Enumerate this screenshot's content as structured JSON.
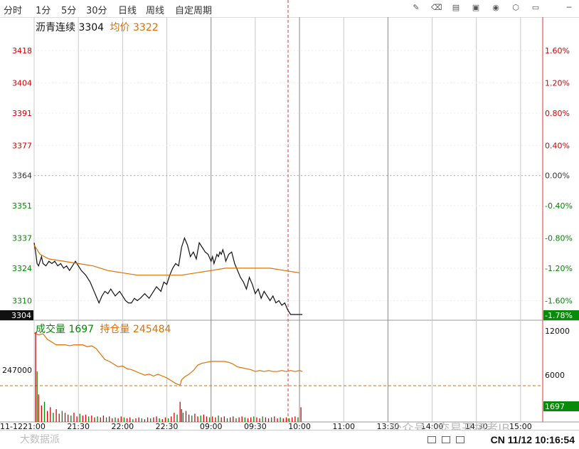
{
  "toolbar": {
    "tabs": [
      "分时",
      "1分",
      "5分",
      "30分",
      "日线",
      "周线",
      "自定周期"
    ],
    "icons": [
      "pencil-icon",
      "eraser-icon",
      "layers-icon",
      "screenshot-icon",
      "camera-icon",
      "settings-icon",
      "note-icon",
      "minimize-icon"
    ]
  },
  "colors": {
    "up": "#d60000",
    "down": "#008800",
    "avg": "#e07000",
    "grid": "#c8c8c8",
    "sep": "#d33",
    "price": "#111"
  },
  "price_legend": {
    "name": "沥青连续",
    "last": "3304",
    "avg_label": "均价",
    "avg": "3322",
    "last_tag": "3304",
    "last_pct": "-1.78%"
  },
  "vol_legend": {
    "vol_label": "成交量",
    "vol": "1697",
    "oi_label": "持仓量",
    "oi": "245484",
    "vol_tag": "1697"
  },
  "chart_data": {
    "type": "line",
    "title": "沥青连续",
    "price_axis": {
      "ticks": [
        3418,
        3404,
        3391,
        3377,
        3364,
        3351,
        3337,
        3324,
        3310
      ],
      "pct_ticks": [
        "1.60%",
        "1.20%",
        "0.80%",
        "0.40%",
        "0.00%",
        "-0.40%",
        "-0.80%",
        "-1.20%",
        "-1.60%"
      ],
      "ylim": [
        3304,
        3438
      ]
    },
    "volume_axis": {
      "right_ticks": [
        "12000",
        "6000"
      ],
      "left_ticks": [
        "247000"
      ],
      "oi_reference": 247000
    },
    "x_axis": {
      "start_label": "11-12",
      "labels": [
        "21:00",
        "21:30",
        "22:00",
        "22:30",
        "09:00",
        "09:30",
        "10:00",
        "11:00",
        "13:30",
        "14:00",
        "14:30",
        "15:00"
      ],
      "total_minutes": 345
    },
    "series": [
      {
        "name": "沥青连续",
        "color": "#111",
        "x": [
          0,
          1,
          2,
          3,
          4,
          5,
          6,
          8,
          10,
          12,
          14,
          16,
          18,
          20,
          22,
          24,
          26,
          28,
          30,
          32,
          35,
          38,
          40,
          42,
          44,
          46,
          48,
          50,
          52,
          55,
          58,
          60,
          62,
          64,
          66,
          68,
          70,
          72,
          75,
          78,
          80,
          83,
          86,
          88,
          90,
          92,
          94,
          96,
          98,
          100,
          102,
          104,
          106,
          108,
          110,
          112,
          114,
          116,
          118,
          120,
          121,
          122,
          123,
          124,
          125,
          126,
          127,
          128,
          129,
          130,
          132,
          134,
          136,
          138,
          140,
          142,
          144,
          146,
          148,
          150,
          152,
          154,
          156,
          158,
          160,
          162,
          164,
          166,
          168,
          170,
          172,
          174,
          176,
          178,
          180,
          182
        ],
        "y": [
          3335,
          3331,
          3326,
          3325,
          3327,
          3329,
          3326,
          3325,
          3327,
          3326,
          3327,
          3325,
          3326,
          3324,
          3325,
          3323,
          3325,
          3327,
          3325,
          3323,
          3321,
          3318,
          3315,
          3312,
          3309,
          3312,
          3314,
          3313,
          3315,
          3312,
          3314,
          3312,
          3310,
          3309,
          3309,
          3311,
          3310,
          3311,
          3313,
          3311,
          3313,
          3316,
          3314,
          3318,
          3317,
          3321,
          3324,
          3326,
          3325,
          3333,
          3337,
          3334,
          3329,
          3331,
          3328,
          3335,
          3333,
          3331,
          3330,
          3327,
          3329,
          3326,
          3328,
          3330,
          3329,
          3331,
          3330,
          3332,
          3330,
          3327,
          3330,
          3331,
          3326,
          3323,
          3320,
          3318,
          3315,
          3320,
          3317,
          3313,
          3315,
          3311,
          3314,
          3312,
          3310,
          3312,
          3309,
          3310,
          3308,
          3309,
          3306,
          3304,
          3304,
          3304,
          3304,
          3304
        ]
      },
      {
        "name": "均价",
        "color": "#e07000",
        "x": [
          0,
          4,
          10,
          20,
          30,
          40,
          50,
          60,
          70,
          80,
          90,
          100,
          110,
          120,
          130,
          140,
          150,
          160,
          170,
          180
        ],
        "y": [
          3334,
          3330,
          3328,
          3327,
          3326,
          3325,
          3323,
          3322,
          3321,
          3321,
          3321,
          3321,
          3322,
          3323,
          3324,
          3324,
          3324,
          3324,
          3323,
          3322
        ]
      },
      {
        "name": "持仓量",
        "color": "#e07000",
        "axis": "volume",
        "x": [
          0,
          3,
          6,
          9,
          12,
          15,
          18,
          21,
          24,
          27,
          30,
          33,
          36,
          39,
          42,
          45,
          48,
          51,
          54,
          57,
          60,
          63,
          66,
          69,
          72,
          75,
          78,
          81,
          84,
          87,
          90,
          93,
          96,
          99,
          100,
          102,
          105,
          108,
          111,
          114,
          117,
          120,
          123,
          126,
          129,
          132,
          135,
          138,
          141,
          144,
          147,
          150,
          153,
          156,
          159,
          162,
          165,
          168,
          171,
          174,
          177,
          180,
          182
        ],
        "y": [
          0.97,
          0.95,
          0.96,
          0.9,
          0.87,
          0.84,
          0.84,
          0.84,
          0.83,
          0.84,
          0.84,
          0.84,
          0.82,
          0.83,
          0.8,
          0.74,
          0.68,
          0.66,
          0.63,
          0.6,
          0.61,
          0.58,
          0.57,
          0.55,
          0.53,
          0.51,
          0.52,
          0.5,
          0.52,
          0.5,
          0.48,
          0.45,
          0.42,
          0.4,
          0.46,
          0.49,
          0.52,
          0.56,
          0.62,
          0.64,
          0.65,
          0.66,
          0.66,
          0.66,
          0.66,
          0.65,
          0.63,
          0.6,
          0.59,
          0.58,
          0.57,
          0.55,
          0.56,
          0.55,
          0.56,
          0.55,
          0.55,
          0.56,
          0.55,
          0.56,
          0.55,
          0.56,
          0.55
        ]
      },
      {
        "name": "成交量",
        "color": "#d60000",
        "axis": "volume",
        "type": "bar",
        "x": [
          1,
          2,
          3,
          5,
          7,
          9,
          11,
          13,
          15,
          17,
          19,
          21,
          23,
          25,
          27,
          29,
          31,
          33,
          35,
          37,
          39,
          41,
          43,
          45,
          47,
          49,
          51,
          53,
          55,
          57,
          59,
          61,
          63,
          65,
          67,
          69,
          71,
          73,
          75,
          77,
          79,
          81,
          83,
          85,
          87,
          89,
          91,
          93,
          95,
          97,
          99,
          100,
          101,
          103,
          105,
          107,
          109,
          111,
          113,
          115,
          117,
          119,
          121,
          123,
          125,
          127,
          129,
          131,
          133,
          135,
          137,
          139,
          141,
          143,
          145,
          147,
          149,
          151,
          153,
          155,
          157,
          159,
          161,
          163,
          165,
          167,
          169,
          171,
          173,
          175,
          177,
          179,
          181
        ],
        "y": [
          0.98,
          0.55,
          0.3,
          0.18,
          0.22,
          0.12,
          0.16,
          0.1,
          0.14,
          0.09,
          0.12,
          0.1,
          0.08,
          0.07,
          0.1,
          0.06,
          0.09,
          0.07,
          0.08,
          0.06,
          0.07,
          0.05,
          0.06,
          0.05,
          0.07,
          0.05,
          0.06,
          0.04,
          0.05,
          0.04,
          0.06,
          0.05,
          0.04,
          0.05,
          0.03,
          0.04,
          0.05,
          0.04,
          0.03,
          0.05,
          0.04,
          0.05,
          0.06,
          0.04,
          0.03,
          0.05,
          0.04,
          0.06,
          0.1,
          0.08,
          0.22,
          0.14,
          0.1,
          0.12,
          0.08,
          0.07,
          0.09,
          0.06,
          0.07,
          0.08,
          0.06,
          0.05,
          0.06,
          0.05,
          0.07,
          0.05,
          0.06,
          0.04,
          0.05,
          0.06,
          0.04,
          0.05,
          0.06,
          0.05,
          0.04,
          0.05,
          0.06,
          0.05,
          0.04,
          0.06,
          0.05,
          0.04,
          0.05,
          0.06,
          0.04,
          0.05,
          0.04,
          0.05,
          0.04,
          0.05,
          0.06,
          0.05,
          0.16
        ]
      }
    ]
  },
  "watermarks": {
    "top": "公众号 · 交易开拓者IB",
    "bottom": "大数据派"
  },
  "status": {
    "market": "CN",
    "datetime": "11/12 10:16:54"
  }
}
